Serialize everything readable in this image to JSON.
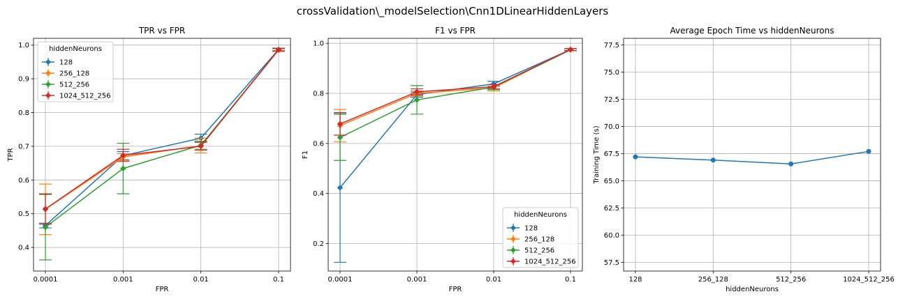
{
  "suptitle": "crossValidation\\_modelSelection\\Cnn1DLinearHiddenLayers",
  "colors": [
    "#1f77b4",
    "#ff7f0e",
    "#2ca02c",
    "#d62728"
  ],
  "chart_data": [
    {
      "type": "line",
      "title": "TPR vs FPR",
      "xlabel": "FPR",
      "ylabel": "TPR",
      "categories": [
        "0.0001",
        "0.001",
        "0.01",
        "0.1"
      ],
      "yticks": [
        "0.4",
        "0.5",
        "0.6",
        "0.7",
        "0.8",
        "0.9",
        "1.0"
      ],
      "ylim": [
        0.33,
        1.02
      ],
      "grid": true,
      "legend": {
        "title": "hiddenNeurons",
        "placement": "top-left"
      },
      "series": [
        {
          "name": "128",
          "marker": "diamond",
          "values": [
            0.465,
            0.672,
            0.724,
            0.987
          ],
          "err": [
            0.007,
            0.012,
            0.012,
            0.004
          ]
        },
        {
          "name": "256_128",
          "marker": "diamond",
          "values": [
            0.513,
            0.668,
            0.702,
            0.985
          ],
          "err": [
            0.075,
            0.01,
            0.022,
            0.004
          ]
        },
        {
          "name": "512_256",
          "marker": "diamond",
          "values": [
            0.46,
            0.634,
            0.703,
            0.986
          ],
          "err": [
            0.097,
            0.075,
            0.012,
            0.004
          ]
        },
        {
          "name": "1024_512_256",
          "marker": "diamond",
          "values": [
            0.514,
            0.673,
            0.7,
            0.986
          ],
          "err": [
            0.045,
            0.018,
            0.012,
            0.004
          ]
        }
      ]
    },
    {
      "type": "line",
      "title": "F1 vs FPR",
      "xlabel": "FPR",
      "ylabel": "F1",
      "categories": [
        "0.0001",
        "0.001",
        "0.01",
        "0.1"
      ],
      "yticks": [
        "0.2",
        "0.4",
        "0.6",
        "0.8",
        "1.0"
      ],
      "ylim": [
        0.09,
        1.02
      ],
      "grid": true,
      "legend": {
        "title": "hiddenNeurons",
        "placement": "lower-right"
      },
      "series": [
        {
          "name": "128",
          "marker": "diamond",
          "values": [
            0.423,
            0.795,
            0.838,
            0.975
          ],
          "err": [
            0.298,
            0.01,
            0.01,
            0.004
          ]
        },
        {
          "name": "256_128",
          "marker": "diamond",
          "values": [
            0.671,
            0.8,
            0.822,
            0.975
          ],
          "err": [
            0.065,
            0.01,
            0.012,
            0.004
          ]
        },
        {
          "name": "512_256",
          "marker": "diamond",
          "values": [
            0.624,
            0.774,
            0.825,
            0.974
          ],
          "err": [
            0.092,
            0.057,
            0.01,
            0.004
          ]
        },
        {
          "name": "1024_512_256",
          "marker": "diamond",
          "values": [
            0.678,
            0.806,
            0.827,
            0.975
          ],
          "err": [
            0.045,
            0.012,
            0.008,
            0.004
          ]
        }
      ]
    },
    {
      "type": "line",
      "title": "Average Epoch Time vs hiddenNeurons",
      "xlabel": "hiddenNeurons",
      "ylabel": "Training Time (s)",
      "categories": [
        "128",
        "256_128",
        "512_256",
        "1024_512_256"
      ],
      "yticks": [
        "57.5",
        "60.0",
        "62.5",
        "65.0",
        "67.5",
        "70.0",
        "72.5",
        "75.0",
        "77.5"
      ],
      "ylim": [
        56.7,
        78.1
      ],
      "grid": true,
      "series": [
        {
          "marker": "circle",
          "values": [
            67.2,
            66.9,
            66.55,
            67.7
          ]
        }
      ]
    }
  ]
}
